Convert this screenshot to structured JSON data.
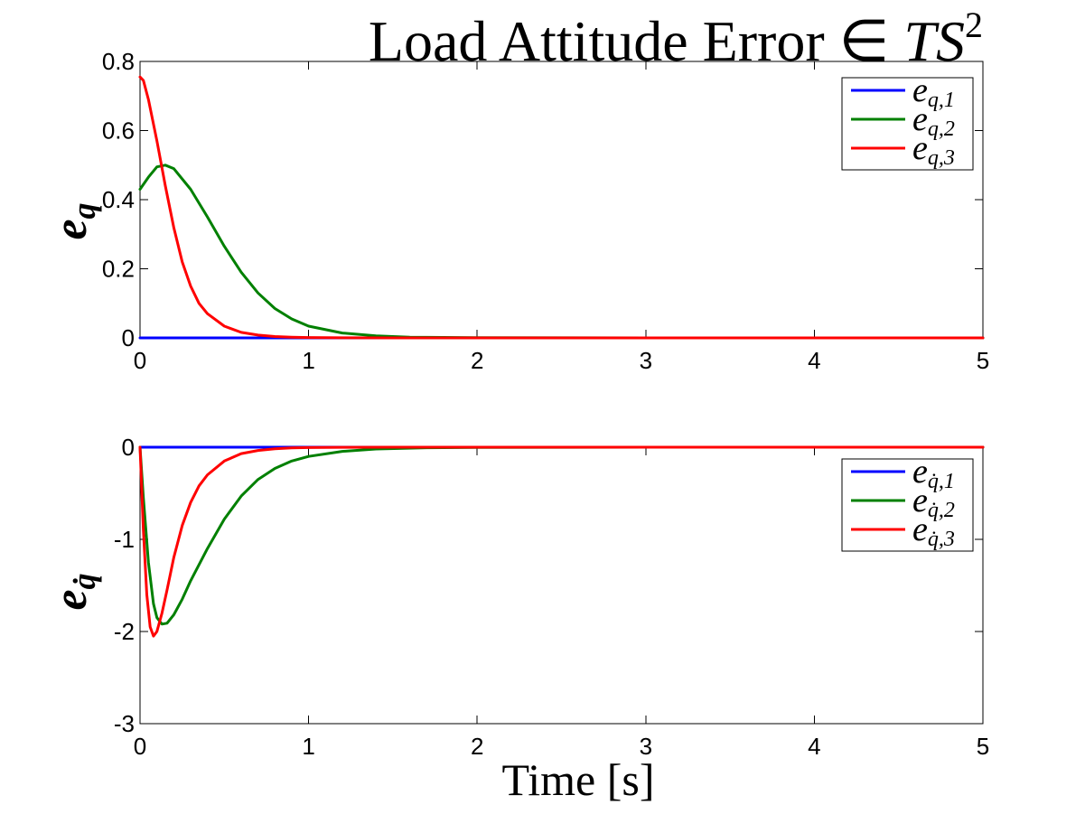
{
  "figure": {
    "title_main": "Load Attitude Error ∈ ",
    "title_var": "TS",
    "title_sup": "2",
    "xlabel": "Time [s]"
  },
  "chart_data": [
    {
      "type": "line",
      "ylabel_base": "e",
      "ylabel_sub": "q",
      "xlim": [
        0,
        5
      ],
      "ylim": [
        0,
        0.8
      ],
      "xticks": [
        0,
        1,
        2,
        3,
        4,
        5
      ],
      "yticks": [
        0,
        0.2,
        0.4,
        0.6,
        0.8
      ],
      "xtick_labels": [
        "0",
        "1",
        "2",
        "3",
        "4",
        "5"
      ],
      "ytick_labels": [
        "0",
        "0.2",
        "0.4",
        "0.6",
        "0.8"
      ],
      "grid": false,
      "legend": "top-right",
      "series": [
        {
          "name_base": "e",
          "name_sub": "q,1",
          "color": "#0000ff",
          "x": [
            0,
            1,
            2,
            3,
            4,
            5
          ],
          "y": [
            0,
            0,
            0,
            0,
            0,
            0
          ]
        },
        {
          "name_base": "e",
          "name_sub": "q,2",
          "color": "#008000",
          "x": [
            0,
            0.05,
            0.1,
            0.15,
            0.2,
            0.3,
            0.4,
            0.5,
            0.6,
            0.7,
            0.8,
            0.9,
            1.0,
            1.2,
            1.4,
            1.6,
            2.0,
            3.0,
            4.0,
            5.0
          ],
          "y": [
            0.43,
            0.465,
            0.495,
            0.5,
            0.49,
            0.43,
            0.35,
            0.265,
            0.19,
            0.13,
            0.085,
            0.055,
            0.034,
            0.014,
            0.006,
            0.002,
            0.0005,
            0,
            0,
            0
          ]
        },
        {
          "name_base": "e",
          "name_sub": "q,3",
          "color": "#ff0000",
          "x": [
            0,
            0.02,
            0.05,
            0.1,
            0.15,
            0.2,
            0.25,
            0.3,
            0.35,
            0.4,
            0.5,
            0.6,
            0.7,
            0.8,
            0.9,
            1.0,
            1.2,
            1.5,
            2.0,
            3.0,
            4.0,
            5.0
          ],
          "y": [
            0.755,
            0.745,
            0.69,
            0.57,
            0.44,
            0.32,
            0.22,
            0.15,
            0.1,
            0.07,
            0.034,
            0.016,
            0.008,
            0.004,
            0.002,
            0.001,
            0.0003,
            0,
            0,
            0,
            0,
            0
          ]
        }
      ]
    },
    {
      "type": "line",
      "ylabel_base": "e",
      "ylabel_sub": "q̇",
      "xlim": [
        0,
        5
      ],
      "ylim": [
        -3,
        0
      ],
      "xticks": [
        0,
        1,
        2,
        3,
        4,
        5
      ],
      "yticks": [
        -3,
        -2,
        -1,
        0
      ],
      "xtick_labels": [
        "0",
        "1",
        "2",
        "3",
        "4",
        "5"
      ],
      "ytick_labels": [
        "-3",
        "-2",
        "-1",
        "0"
      ],
      "grid": false,
      "legend": "top-right",
      "series": [
        {
          "name_base": "e",
          "name_sub": "q̇,1",
          "color": "#0000ff",
          "x": [
            0,
            1,
            2,
            3,
            4,
            5
          ],
          "y": [
            0,
            0,
            0,
            0,
            0,
            0
          ]
        },
        {
          "name_base": "e",
          "name_sub": "q̇,2",
          "color": "#008000",
          "x": [
            0,
            0.02,
            0.05,
            0.08,
            0.1,
            0.13,
            0.16,
            0.2,
            0.25,
            0.3,
            0.4,
            0.5,
            0.6,
            0.7,
            0.8,
            0.9,
            1.0,
            1.2,
            1.4,
            1.7,
            2.0,
            3.0,
            4.0,
            5.0
          ],
          "y": [
            0,
            -0.55,
            -1.25,
            -1.7,
            -1.85,
            -1.92,
            -1.91,
            -1.82,
            -1.65,
            -1.45,
            -1.1,
            -0.78,
            -0.53,
            -0.35,
            -0.23,
            -0.15,
            -0.1,
            -0.045,
            -0.02,
            -0.006,
            -0.002,
            0,
            0,
            0
          ]
        },
        {
          "name_base": "e",
          "name_sub": "q̇,3",
          "color": "#ff0000",
          "x": [
            0,
            0.02,
            0.04,
            0.06,
            0.08,
            0.1,
            0.13,
            0.16,
            0.2,
            0.25,
            0.3,
            0.35,
            0.4,
            0.5,
            0.6,
            0.7,
            0.8,
            0.9,
            1.0,
            1.2,
            1.5,
            2.0,
            3.0,
            4.0,
            5.0
          ],
          "y": [
            0,
            -0.9,
            -1.6,
            -1.95,
            -2.05,
            -2.0,
            -1.8,
            -1.55,
            -1.2,
            -0.85,
            -0.6,
            -0.42,
            -0.3,
            -0.15,
            -0.07,
            -0.035,
            -0.017,
            -0.008,
            -0.004,
            -0.001,
            0,
            0,
            0,
            0,
            0
          ]
        }
      ]
    }
  ]
}
